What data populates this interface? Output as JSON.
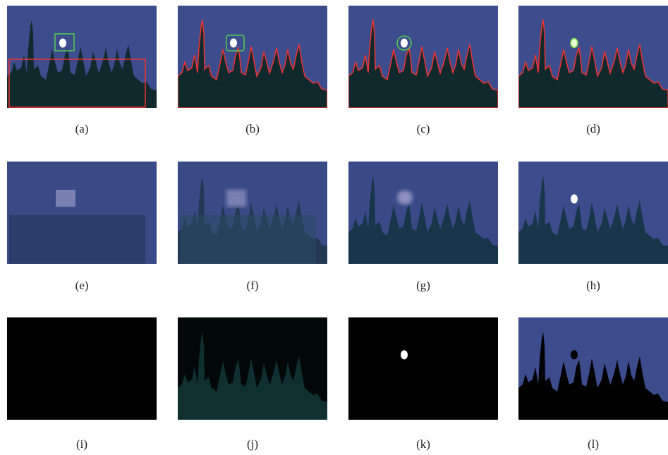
{
  "panels": [
    {
      "caption": "(a)"
    },
    {
      "caption": "(b)"
    },
    {
      "caption": "(c)"
    },
    {
      "caption": "(d)"
    },
    {
      "caption": "(e)"
    },
    {
      "caption": "(f)"
    },
    {
      "caption": "(g)"
    },
    {
      "caption": "(h)"
    },
    {
      "caption": "(i)"
    },
    {
      "caption": "(j)"
    },
    {
      "caption": "(k)"
    },
    {
      "caption": "(l)"
    }
  ]
}
